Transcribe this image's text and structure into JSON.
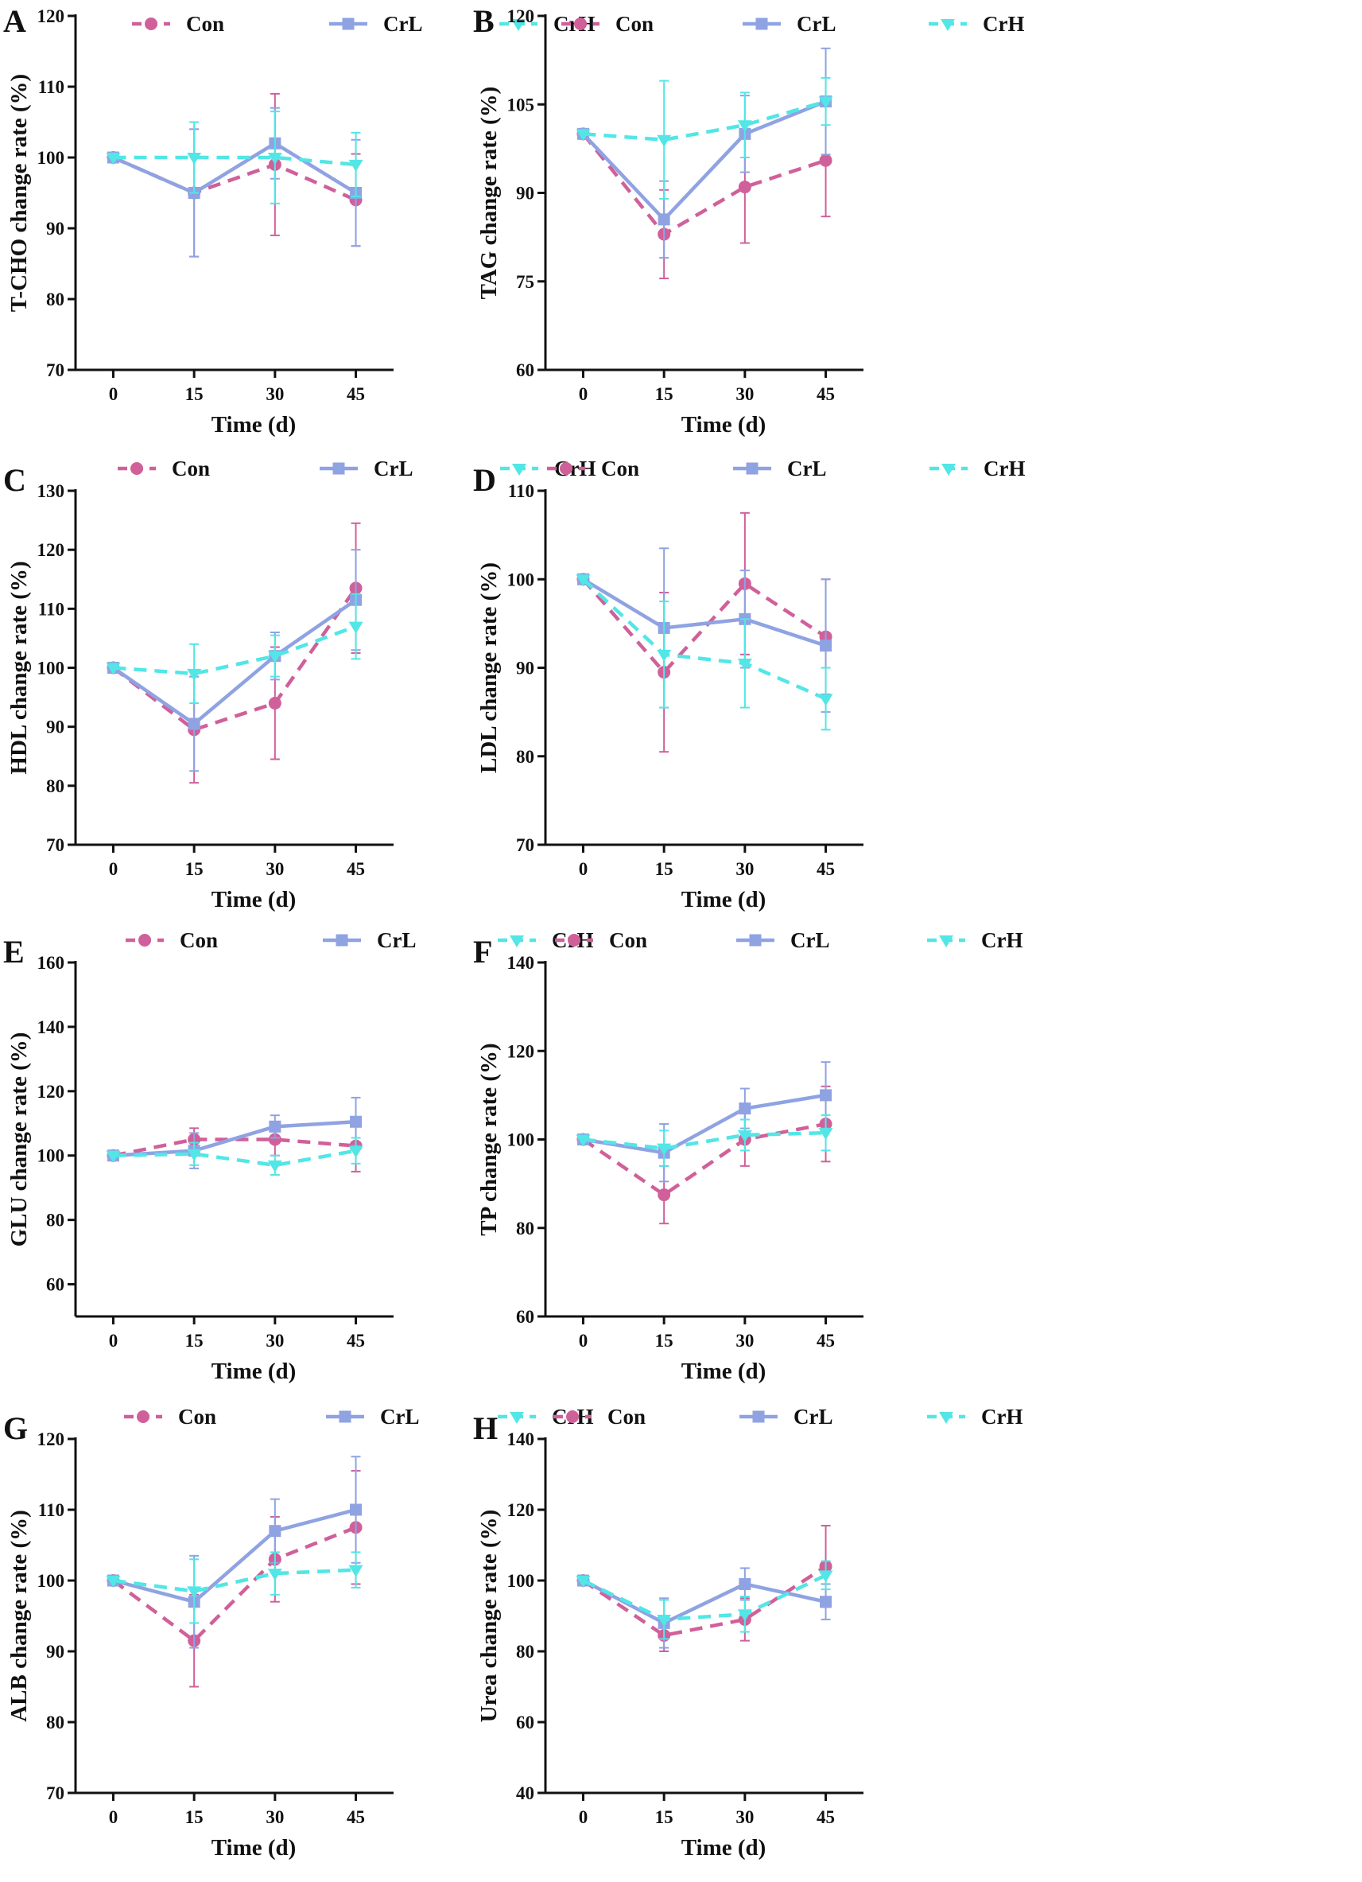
{
  "figure": {
    "series_meta": [
      {
        "name": "Con",
        "color": "#d0609a",
        "dash": "dashed",
        "marker": "circle"
      },
      {
        "name": "CrL",
        "color": "#8fa3e3",
        "dash": "solid",
        "marker": "square"
      },
      {
        "name": "CrH",
        "color": "#52e6e6",
        "dash": "dashed",
        "marker": "triangle-down"
      }
    ]
  },
  "chart_data": [
    {
      "panel": "A",
      "type": "line",
      "xlabel": "Time (d)",
      "ylabel": "T-CHO change rate (%)",
      "x": [
        0,
        15,
        30,
        45
      ],
      "ylim": [
        70,
        120
      ],
      "yticks": [
        70,
        80,
        90,
        100,
        110,
        120
      ],
      "series": [
        {
          "name": "Con",
          "values": [
            100,
            95,
            99,
            94
          ],
          "errors": [
            0,
            9,
            10,
            6.5
          ]
        },
        {
          "name": "CrL",
          "values": [
            100,
            95,
            102,
            95
          ],
          "errors": [
            0,
            9,
            5,
            7.5
          ]
        },
        {
          "name": "CrH",
          "values": [
            100,
            100,
            100,
            99
          ],
          "errors": [
            0,
            5,
            6.5,
            4.5
          ]
        }
      ]
    },
    {
      "panel": "B",
      "type": "line",
      "xlabel": "Time (d)",
      "ylabel": "TAG change rate (%)",
      "x": [
        0,
        15,
        30,
        45
      ],
      "ylim": [
        60,
        120
      ],
      "yticks": [
        60,
        75,
        90,
        105,
        120
      ],
      "series": [
        {
          "name": "Con",
          "values": [
            100,
            83,
            91,
            95.5
          ],
          "errors": [
            0,
            7.5,
            9.5,
            9.5
          ]
        },
        {
          "name": "CrL",
          "values": [
            100,
            85.5,
            100,
            105.5
          ],
          "errors": [
            0,
            6.5,
            6.5,
            9
          ]
        },
        {
          "name": "CrH",
          "values": [
            100,
            99,
            101.5,
            105.5
          ],
          "errors": [
            0,
            10,
            5.5,
            4
          ]
        }
      ]
    },
    {
      "panel": "C",
      "type": "line",
      "xlabel": "Time (d)",
      "ylabel": "HDL change rate (%)",
      "x": [
        0,
        15,
        30,
        45
      ],
      "ylim": [
        70,
        130
      ],
      "yticks": [
        70,
        80,
        90,
        100,
        110,
        120,
        130
      ],
      "series": [
        {
          "name": "Con",
          "values": [
            100,
            89.5,
            94,
            113.5
          ],
          "errors": [
            0,
            9,
            9.5,
            11
          ]
        },
        {
          "name": "CrL",
          "values": [
            100,
            90.5,
            102,
            111.5
          ],
          "errors": [
            0,
            8,
            4,
            8.5
          ]
        },
        {
          "name": "CrH",
          "values": [
            100,
            99,
            102,
            107
          ],
          "errors": [
            0,
            5,
            3.5,
            5.5
          ]
        }
      ]
    },
    {
      "panel": "D",
      "type": "line",
      "xlabel": "Time (d)",
      "ylabel": "LDL change rate (%)",
      "x": [
        0,
        15,
        30,
        45
      ],
      "ylim": [
        70,
        110
      ],
      "yticks": [
        70,
        80,
        90,
        100,
        110
      ],
      "series": [
        {
          "name": "Con",
          "values": [
            100,
            89.5,
            99.5,
            93.5
          ],
          "errors": [
            0,
            9,
            8,
            6.5
          ]
        },
        {
          "name": "CrL",
          "values": [
            100,
            94.5,
            95.5,
            92.5
          ],
          "errors": [
            0,
            9,
            5.5,
            7.5
          ]
        },
        {
          "name": "CrH",
          "values": [
            100,
            91.5,
            90.5,
            86.5
          ],
          "errors": [
            0,
            6,
            5,
            3.5
          ]
        }
      ]
    },
    {
      "panel": "E",
      "type": "line",
      "xlabel": "Time (d)",
      "ylabel": "GLU change rate (%)",
      "x": [
        0,
        15,
        30,
        45
      ],
      "ylim": [
        50,
        160
      ],
      "yticks": [
        60,
        80,
        100,
        120,
        140,
        160
      ],
      "series": [
        {
          "name": "Con",
          "values": [
            100,
            105,
            105,
            103
          ],
          "errors": [
            0,
            3.5,
            5,
            8
          ]
        },
        {
          "name": "CrL",
          "values": [
            100,
            101.5,
            109,
            110.5
          ],
          "errors": [
            0,
            5.5,
            3.5,
            7.5
          ]
        },
        {
          "name": "CrH",
          "values": [
            100,
            100.5,
            97,
            101.5
          ],
          "errors": [
            0,
            3.5,
            3,
            4
          ]
        }
      ]
    },
    {
      "panel": "F",
      "type": "line",
      "xlabel": "Time (d)",
      "ylabel": "TP change rate (%)",
      "x": [
        0,
        15,
        30,
        45
      ],
      "ylim": [
        60,
        140
      ],
      "yticks": [
        60,
        80,
        100,
        120,
        140
      ],
      "series": [
        {
          "name": "Con",
          "values": [
            100,
            87.5,
            100,
            103.5
          ],
          "errors": [
            0,
            6.5,
            6,
            8.5
          ]
        },
        {
          "name": "CrL",
          "values": [
            100,
            97,
            107,
            110
          ],
          "errors": [
            0,
            6.5,
            4.5,
            7.5
          ]
        },
        {
          "name": "CrH",
          "values": [
            100,
            98,
            101,
            101.5
          ],
          "errors": [
            0,
            4,
            3.5,
            4
          ]
        }
      ]
    },
    {
      "panel": "G",
      "type": "line",
      "xlabel": "Time (d)",
      "ylabel": "ALB change rate (%)",
      "x": [
        0,
        15,
        30,
        45
      ],
      "ylim": [
        70,
        120
      ],
      "yticks": [
        70,
        80,
        90,
        100,
        110,
        120
      ],
      "series": [
        {
          "name": "Con",
          "values": [
            100,
            91.5,
            103,
            107.5
          ],
          "errors": [
            0,
            6.5,
            6,
            8
          ]
        },
        {
          "name": "CrL",
          "values": [
            100,
            97,
            107,
            110
          ],
          "errors": [
            0,
            6.5,
            4.5,
            7.5
          ]
        },
        {
          "name": "CrH",
          "values": [
            100,
            98.5,
            101,
            101.5
          ],
          "errors": [
            0,
            4.5,
            3,
            2.5
          ]
        }
      ]
    },
    {
      "panel": "H",
      "type": "line",
      "xlabel": "Time (d)",
      "ylabel": "Urea change rate (%)",
      "x": [
        0,
        15,
        30,
        45
      ],
      "ylim": [
        40,
        140
      ],
      "yticks": [
        40,
        60,
        80,
        100,
        120,
        140
      ],
      "series": [
        {
          "name": "Con",
          "values": [
            100,
            84.5,
            89,
            104
          ],
          "errors": [
            0,
            4.5,
            6,
            11.5
          ]
        },
        {
          "name": "CrL",
          "values": [
            100,
            88,
            99,
            94
          ],
          "errors": [
            0,
            7,
            4.5,
            5
          ]
        },
        {
          "name": "CrH",
          "values": [
            100,
            89,
            90.5,
            101.5
          ],
          "errors": [
            0,
            5.5,
            5,
            4
          ]
        }
      ]
    }
  ]
}
